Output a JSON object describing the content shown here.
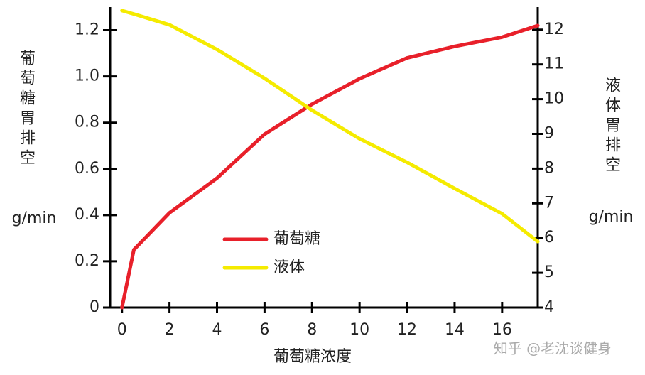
{
  "chart_data": {
    "type": "line",
    "x_label": "葡萄糖浓度",
    "y_label": "葡萄糖胃排空",
    "y_unit": "g/min",
    "y2_label": "液体胃排空",
    "y2_unit": "g/min",
    "x": [
      0,
      0.5,
      2,
      4,
      6,
      8,
      10,
      12,
      14,
      16,
      17.5
    ],
    "xlim": [
      -0.5,
      17.5
    ],
    "xticks": [
      0,
      2,
      4,
      6,
      8,
      10,
      12,
      14,
      16
    ],
    "ylim": [
      0,
      1.3
    ],
    "yticks": [
      0,
      0.2,
      0.4,
      0.6,
      0.8,
      {
        "value": 1,
        "label": "1.0"
      },
      1.2
    ],
    "y2lim": [
      4,
      12.65
    ],
    "y2ticks": [
      4,
      5,
      6,
      7,
      8,
      9,
      10,
      11,
      12
    ],
    "legend": "center-left",
    "series": [
      {
        "name": "葡萄糖",
        "color": "#e8202a",
        "values": [
          0,
          0.25,
          0.41,
          0.56,
          0.75,
          0.88,
          0.99,
          1.08,
          1.13,
          1.17,
          1.22
        ]
      },
      {
        "name": "液体",
        "color": "#f5eb00",
        "axis": "y2",
        "values": [
          12.55,
          12.45,
          12.14,
          11.43,
          10.6,
          9.68,
          8.86,
          8.18,
          7.43,
          6.7,
          5.9
        ]
      }
    ]
  },
  "watermark": "知乎 @老沈谈健身"
}
